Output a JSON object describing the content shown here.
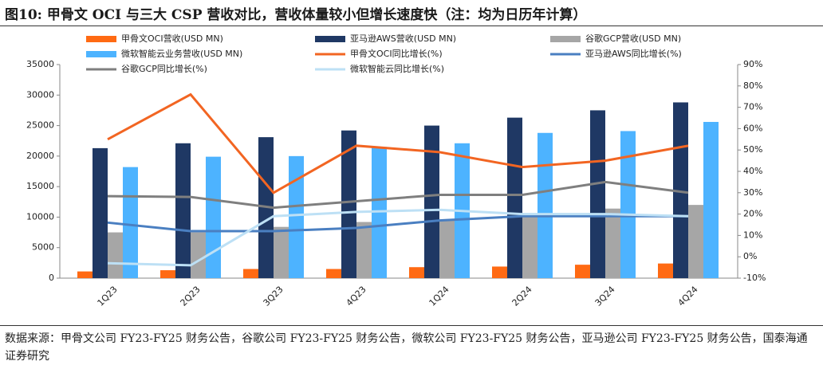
{
  "title": "图10:  甲骨文 OCI 与三大 CSP 营收对比，营收体量较小但增长速度快（注：均为日历年计算）",
  "source": "数据来源：甲骨文公司 FY23-FY25 财务公告，谷歌公司 FY23-FY25 财务公告，微软公司 FY23-FY25 财务公告，亚马逊公司 FY23-FY25 财务公告，国泰海通证券研究",
  "chart_data": {
    "type": "bar-line",
    "categories": [
      "1Q23",
      "2Q23",
      "3Q23",
      "4Q23",
      "1Q24",
      "2Q24",
      "3Q24",
      "4Q24"
    ],
    "series": [
      {
        "name": "甲骨文OCI营收(USD MN)",
        "type": "bar",
        "color": "#ff6a13",
        "values": [
          1100,
          1300,
          1500,
          1500,
          1800,
          1900,
          2200,
          2400
        ]
      },
      {
        "name": "亚马逊AWS营收(USD MN)",
        "type": "bar",
        "color": "#1f3864",
        "values": [
          21300,
          22100,
          23100,
          24200,
          25000,
          26300,
          27500,
          28800
        ]
      },
      {
        "name": "谷歌GCP营收(USD MN)",
        "type": "bar",
        "color": "#a6a6a6",
        "values": [
          7500,
          7500,
          8400,
          9200,
          9600,
          10300,
          11400,
          12000
        ]
      },
      {
        "name": "微软智能云业务营收(USD MN)",
        "type": "bar",
        "color": "#4db3ff",
        "values": [
          18200,
          19900,
          20000,
          21500,
          22100,
          23800,
          24100,
          25600
        ]
      },
      {
        "name": "甲骨文OCI同比增长(%)",
        "type": "line",
        "axis": "y2",
        "color": "#f26522",
        "values": [
          55,
          76,
          30,
          52,
          49,
          42,
          45,
          52
        ]
      },
      {
        "name": "亚马逊AWS同比增长(%)",
        "type": "line",
        "axis": "y2",
        "color": "#4a7fc1",
        "values": [
          16,
          12,
          12,
          13.5,
          17,
          19,
          19,
          19
        ]
      },
      {
        "name": "谷歌GCP同比增长(%)",
        "type": "line",
        "axis": "y2",
        "color": "#7f7f7f",
        "values": [
          28.4,
          28,
          23,
          26,
          29,
          29,
          35,
          30
        ]
      },
      {
        "name": "微软智能云同比增长(%)",
        "type": "line",
        "axis": "y2",
        "color": "#bde0f5",
        "values": [
          -3,
          -4,
          19,
          21,
          22,
          20,
          20,
          19
        ]
      }
    ],
    "ylim": [
      0,
      35000
    ],
    "yticks": [
      0,
      5000,
      10000,
      15000,
      20000,
      25000,
      30000,
      35000
    ],
    "y2lim": [
      -10,
      90
    ],
    "y2ticks": [
      {
        "value": -10,
        "label": "-10%"
      },
      {
        "value": 0,
        "label": "0%"
      },
      {
        "value": 10,
        "label": "10%"
      },
      {
        "value": 20,
        "label": "20%"
      },
      {
        "value": 30,
        "label": "30%"
      },
      {
        "value": 40,
        "label": "40%"
      },
      {
        "value": 50,
        "label": "50%"
      },
      {
        "value": 60,
        "label": "60%"
      },
      {
        "value": 70,
        "label": "70%"
      },
      {
        "value": 80,
        "label": "80%"
      },
      {
        "value": 90,
        "label": "90%"
      }
    ]
  }
}
